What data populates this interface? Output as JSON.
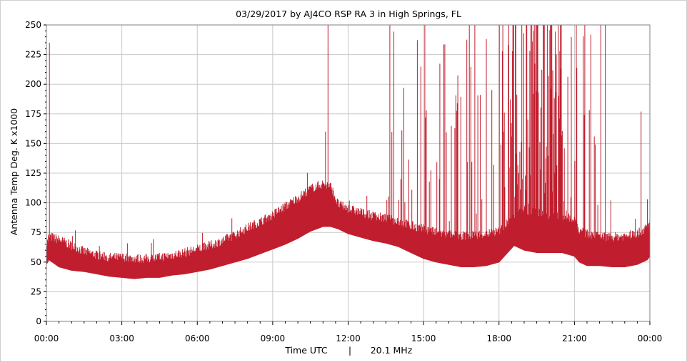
{
  "chart_data": {
    "type": "line",
    "title": "03/29/2017  by  AJ4CO RSP RA 3  in  High Springs, FL",
    "ylabel": "Antenna Temp Deg. K x1000",
    "xlabel_left": "Time UTC",
    "xlabel_sep": "|",
    "xlabel_right": "20.1 MHz",
    "xlim": [
      0,
      24
    ],
    "ylim": [
      0,
      250
    ],
    "x_ticks": [
      {
        "v": 0,
        "label": "00:00"
      },
      {
        "v": 3,
        "label": "03:00"
      },
      {
        "v": 6,
        "label": "06:00"
      },
      {
        "v": 9,
        "label": "09:00"
      },
      {
        "v": 12,
        "label": "12:00"
      },
      {
        "v": 15,
        "label": "15:00"
      },
      {
        "v": 18,
        "label": "18:00"
      },
      {
        "v": 21,
        "label": "21:00"
      },
      {
        "v": 24,
        "label": "00:00"
      }
    ],
    "y_ticks": [
      {
        "v": 0,
        "label": "0"
      },
      {
        "v": 25,
        "label": "25"
      },
      {
        "v": 50,
        "label": "50"
      },
      {
        "v": 75,
        "label": "75"
      },
      {
        "v": 100,
        "label": "100"
      },
      {
        "v": 125,
        "label": "125"
      },
      {
        "v": 150,
        "label": "150"
      },
      {
        "v": 175,
        "label": "175"
      },
      {
        "v": 200,
        "label": "200"
      },
      {
        "v": 225,
        "label": "225"
      },
      {
        "v": 250,
        "label": "250"
      }
    ],
    "grid": true,
    "series": [
      {
        "color": "#c01e2e",
        "x": [
          0.0,
          0.1,
          0.5,
          1.0,
          1.5,
          2.0,
          2.5,
          3.0,
          3.5,
          4.0,
          4.5,
          5.0,
          5.5,
          6.0,
          6.5,
          7.0,
          7.5,
          8.0,
          8.5,
          9.0,
          9.5,
          10.0,
          10.5,
          11.0,
          11.3,
          11.6,
          12.0,
          12.5,
          13.0,
          13.5,
          14.0,
          14.5,
          15.0,
          15.5,
          16.0,
          16.5,
          17.0,
          17.5,
          18.0,
          18.3,
          18.6,
          18.8,
          19.0,
          19.5,
          20.0,
          20.5,
          21.0,
          21.2,
          21.5,
          22.0,
          22.5,
          23.0,
          23.5,
          23.9,
          24.0
        ],
        "low": [
          48,
          52,
          46,
          43,
          42,
          40,
          38,
          37,
          36,
          37,
          37,
          39,
          40,
          42,
          44,
          47,
          50,
          53,
          57,
          61,
          65,
          70,
          76,
          80,
          80,
          78,
          74,
          71,
          68,
          66,
          63,
          58,
          53,
          50,
          48,
          46,
          46,
          47,
          50,
          57,
          64,
          62,
          60,
          58,
          58,
          58,
          55,
          50,
          47,
          47,
          46,
          46,
          48,
          52,
          55
        ],
        "high": [
          60,
          68,
          65,
          60,
          55,
          52,
          50,
          50,
          49,
          49,
          50,
          52,
          54,
          57,
          60,
          64,
          69,
          75,
          80,
          86,
          93,
          100,
          108,
          112,
          110,
          95,
          91,
          88,
          85,
          83,
          80,
          77,
          74,
          71,
          69,
          68,
          69,
          70,
          72,
          78,
          85,
          90,
          90,
          88,
          86,
          85,
          83,
          72,
          70,
          68,
          67,
          68,
          70,
          75,
          80
        ]
      }
    ]
  }
}
